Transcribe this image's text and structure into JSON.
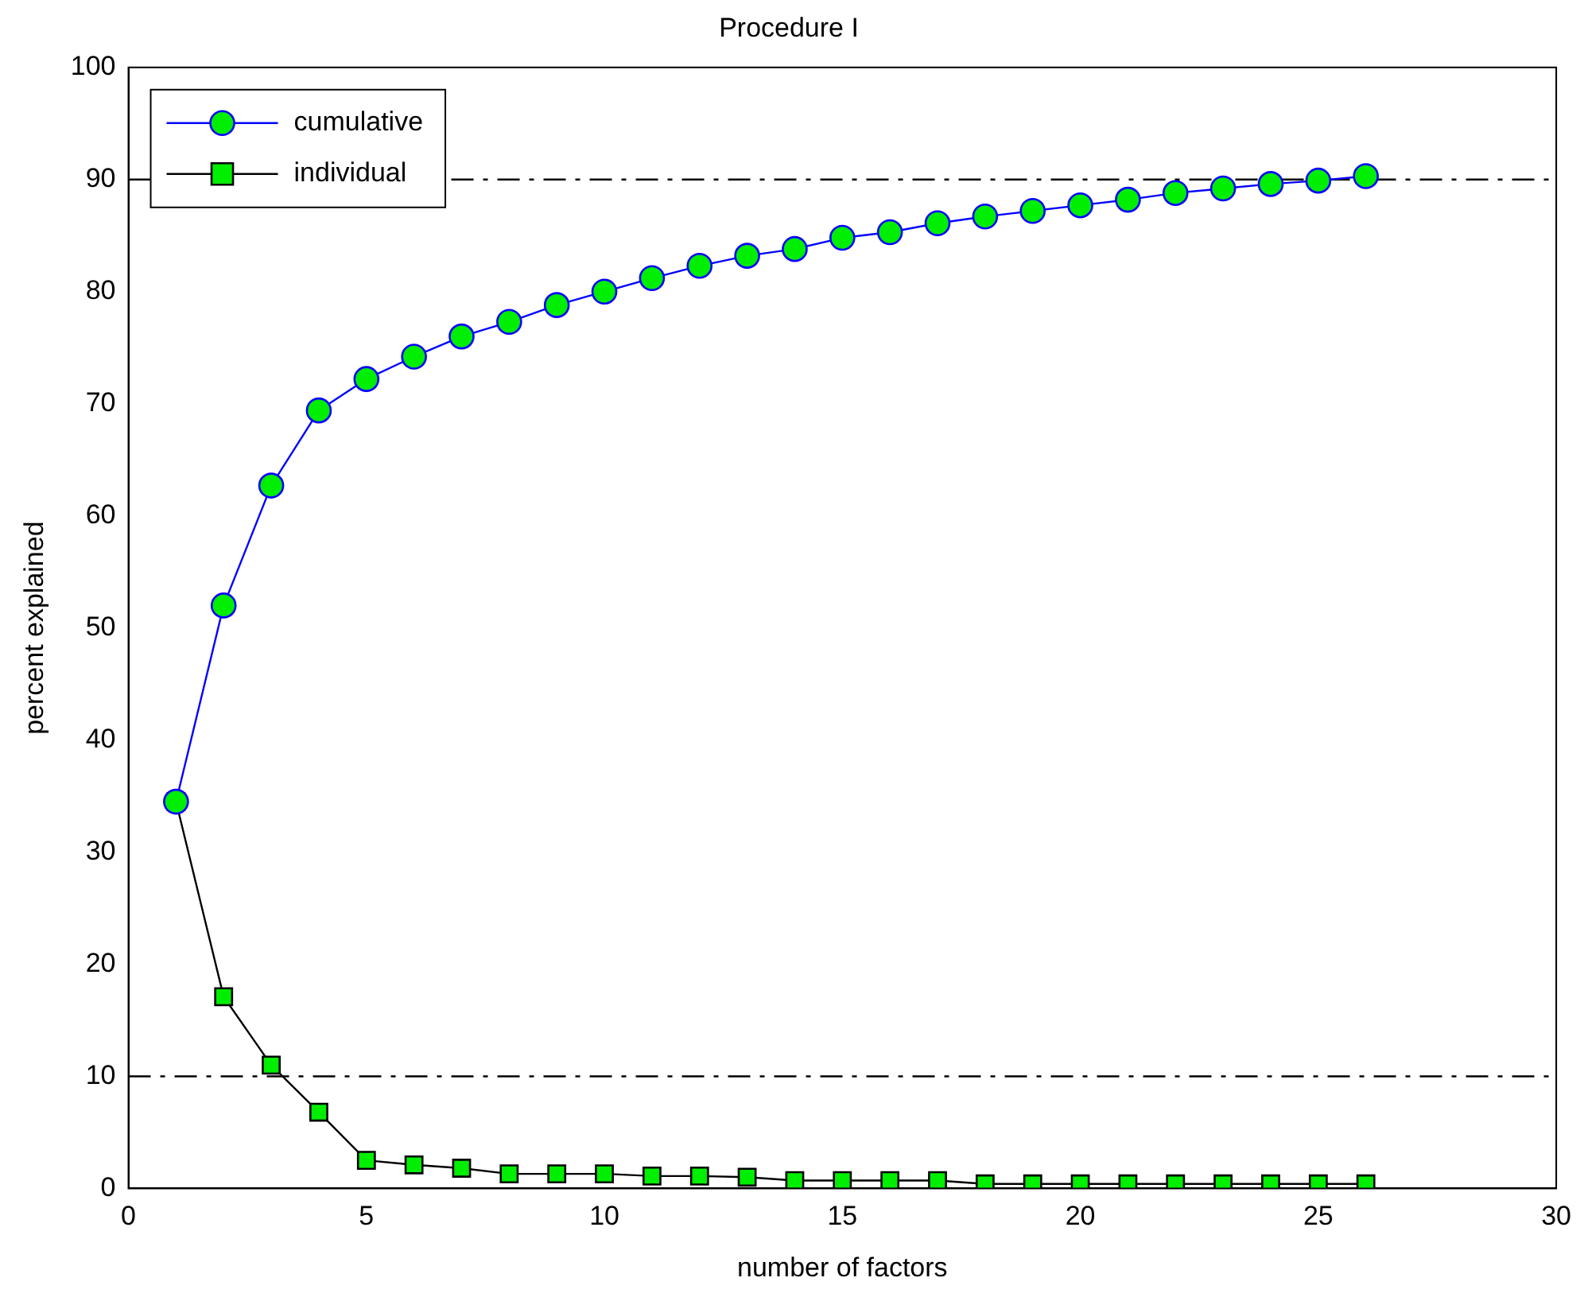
{
  "chart_data": {
    "type": "line",
    "title": "Procedure I",
    "xlabel": "number of factors",
    "ylabel": "percent explained",
    "x": [
      1,
      2,
      3,
      4,
      5,
      6,
      7,
      8,
      9,
      10,
      11,
      12,
      13,
      14,
      15,
      16,
      17,
      18,
      19,
      20,
      21,
      22,
      23,
      24,
      25,
      26
    ],
    "series": [
      {
        "name": "cumulative",
        "color": "#0000ff",
        "marker": "circle",
        "values": [
          34.5,
          52.0,
          62.7,
          69.4,
          72.2,
          74.2,
          76.0,
          77.3,
          78.8,
          80.0,
          81.2,
          82.3,
          83.2,
          83.8,
          84.8,
          85.3,
          86.1,
          86.7,
          87.2,
          87.7,
          88.2,
          88.8,
          89.2,
          89.6,
          89.9,
          90.3
        ]
      },
      {
        "name": "individual",
        "color": "#000000",
        "marker": "square",
        "values": [
          34.5,
          17.1,
          11.0,
          6.8,
          2.5,
          2.1,
          1.8,
          1.3,
          1.3,
          1.3,
          1.1,
          1.1,
          1.0,
          0.7,
          0.7,
          0.7,
          0.7,
          0.4,
          0.4,
          0.4,
          0.4,
          0.4,
          0.4,
          0.4,
          0.4,
          0.4
        ]
      }
    ],
    "xlim": [
      0,
      30
    ],
    "xticks": [
      0,
      5,
      10,
      15,
      20,
      25,
      30
    ],
    "ylim": [
      0,
      100
    ],
    "yticks": [
      0,
      10,
      20,
      30,
      40,
      50,
      60,
      70,
      80,
      90,
      100
    ],
    "ref_lines": [
      {
        "axis": "y",
        "value": 90,
        "color": "#000000",
        "line_style": "dashed"
      },
      {
        "axis": "y",
        "value": 10,
        "color": "#000000",
        "line_style": "dashed"
      }
    ],
    "grid": false,
    "legend": "top left"
  }
}
